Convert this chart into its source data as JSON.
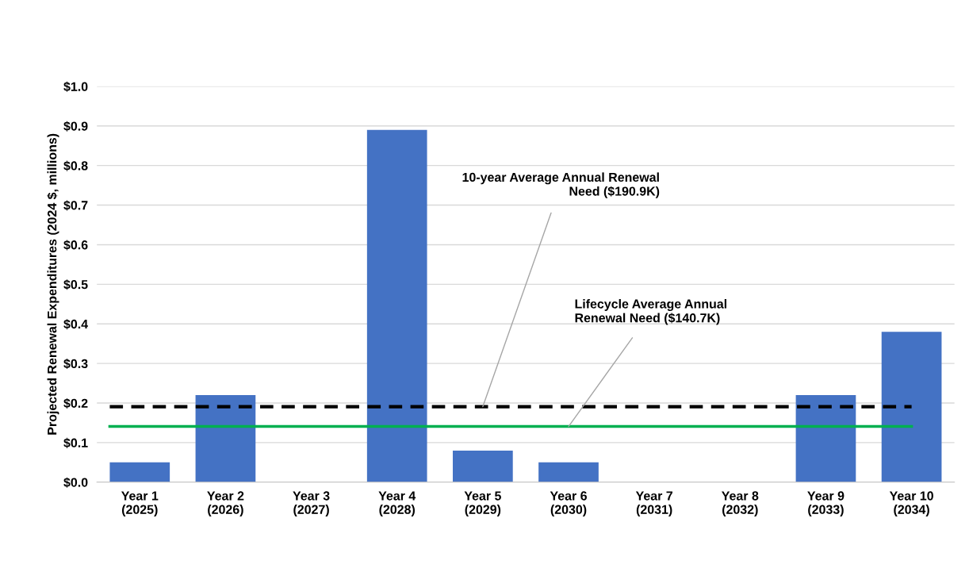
{
  "chart_data": {
    "type": "bar",
    "ylabel": "Projected Renewal Expenditures (2024 $, millions)",
    "categories": [
      "Year 1\n(2025)",
      "Year 2\n(2026)",
      "Year 3\n(2027)",
      "Year 4\n(2028)",
      "Year 5\n(2029)",
      "Year 6\n(2030)",
      "Year 7\n(2031)",
      "Year 8\n(2032)",
      "Year 9\n(2033)",
      "Year 10\n(2034)"
    ],
    "values": [
      0.05,
      0.22,
      0,
      0.89,
      0.08,
      0.05,
      0,
      0,
      0.22,
      0.38
    ],
    "color": "#4472c4",
    "ylim": [
      0,
      1.0
    ],
    "yticks": [
      {
        "value": 0,
        "label": "$0.0"
      },
      {
        "value": 0.1,
        "label": "$0.1"
      },
      {
        "value": 0.2,
        "label": "$0.2"
      },
      {
        "value": 0.3,
        "label": "$0.3"
      },
      {
        "value": 0.4,
        "label": "$0.4"
      },
      {
        "value": 0.5,
        "label": "$0.5"
      },
      {
        "value": 0.6,
        "label": "$0.6"
      },
      {
        "value": 0.7,
        "label": "$0.7"
      },
      {
        "value": 0.8,
        "label": "$0.8"
      },
      {
        "value": 0.9,
        "label": "$0.9"
      },
      {
        "value": 1.0,
        "label": "$1.0"
      }
    ],
    "grid": "y",
    "ref_lines": [
      {
        "axis": "y",
        "value": 0.1909,
        "label": "10-year Average Annual Renewal\nNeed ($190.9K)",
        "color": "#000000",
        "line_style": "dashed"
      },
      {
        "axis": "y",
        "value": 0.1407,
        "label": "Lifecycle Average Annual\nRenewal Need ($140.7K)",
        "color": "#00b050",
        "line_style": "solid"
      }
    ]
  }
}
